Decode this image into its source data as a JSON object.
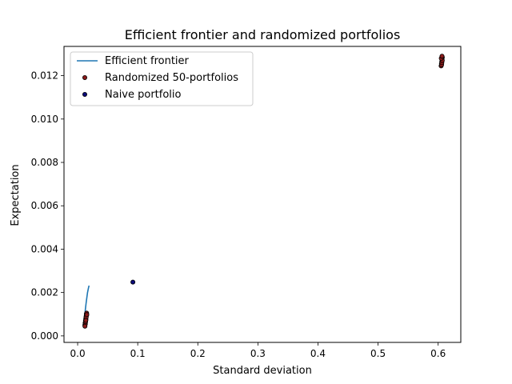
{
  "chart_data": {
    "type": "scatter",
    "title": "Efficient frontier and randomized portfolios",
    "xlabel": "Standard deviation",
    "ylabel": "Expectation",
    "xlim": [
      -0.0227,
      0.6377
    ],
    "ylim": [
      -0.0003,
      0.01335
    ],
    "xticks": [
      0.0,
      0.1,
      0.2,
      0.3,
      0.4,
      0.5,
      0.6
    ],
    "xtick_labels": [
      "0.0",
      "0.1",
      "0.2",
      "0.3",
      "0.4",
      "0.5",
      "0.6"
    ],
    "yticks": [
      0.0,
      0.002,
      0.004,
      0.006,
      0.008,
      0.01,
      0.012
    ],
    "ytick_labels": [
      "0.000",
      "0.002",
      "0.004",
      "0.006",
      "0.008",
      "0.010",
      "0.012"
    ],
    "grid": false,
    "legend_position": "top-left",
    "legend": [
      "Efficient frontier",
      "Randomized 50-portfolios",
      "Naive portfolio"
    ],
    "series": [
      {
        "name": "Efficient frontier",
        "kind": "line",
        "color": "#1f77b4",
        "x": [
          0.01,
          0.0105,
          0.0112,
          0.012,
          0.013,
          0.014,
          0.0152,
          0.0165,
          0.0178,
          0.019
        ],
        "y": [
          0.0004,
          0.0006,
          0.0008,
          0.001,
          0.00125,
          0.0015,
          0.00175,
          0.002,
          0.00218,
          0.00232
        ]
      },
      {
        "name": "Randomized 50-portfolios",
        "kind": "scatter",
        "color": "#8b1a1a",
        "edgecolor": "#000000",
        "x": [
          0.012,
          0.0125,
          0.013,
          0.0135,
          0.014,
          0.0145,
          0.015,
          0.0128,
          0.0138,
          0.0148,
          0.0132,
          0.0142,
          0.0122,
          0.0152,
          0.0136,
          0.605,
          0.6055,
          0.606,
          0.6065,
          0.607,
          0.6058,
          0.6062,
          0.6068,
          0.6052,
          0.6064
        ],
        "y": [
          0.0005,
          0.0006,
          0.0007,
          0.0008,
          0.0009,
          0.001,
          0.00105,
          0.00055,
          0.00075,
          0.00095,
          0.00065,
          0.00085,
          0.00045,
          0.00098,
          0.00072,
          0.01245,
          0.01255,
          0.01265,
          0.01275,
          0.01285,
          0.0125,
          0.0126,
          0.0127,
          0.0128,
          0.0129
        ]
      },
      {
        "name": "Naive portfolio",
        "kind": "scatter",
        "color": "#0b0b7a",
        "edgecolor": "#000000",
        "x": [
          0.092
        ],
        "y": [
          0.00248
        ]
      }
    ]
  }
}
